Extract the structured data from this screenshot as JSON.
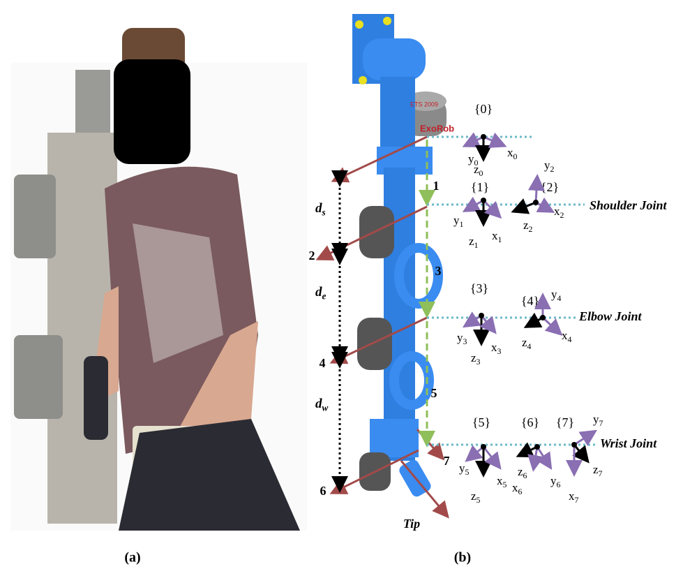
{
  "robot_labels": [
    "ExoRob",
    "ETS 2009"
  ],
  "frames": [
    {
      "label": "{0}",
      "axes": [
        {
          "letter": "y",
          "sub": "0"
        },
        {
          "letter": "z",
          "sub": "0"
        },
        {
          "letter": "x",
          "sub": "0"
        }
      ]
    },
    {
      "label": "{1}",
      "axes": [
        {
          "letter": "y",
          "sub": "1"
        },
        {
          "letter": "z",
          "sub": "1"
        },
        {
          "letter": "x",
          "sub": "1"
        }
      ]
    },
    {
      "label": "{2}",
      "axes": [
        {
          "letter": "y",
          "sub": "2"
        },
        {
          "letter": "x",
          "sub": "2"
        },
        {
          "letter": "z",
          "sub": "2"
        }
      ]
    },
    {
      "label": "{3}",
      "axes": [
        {
          "letter": "y",
          "sub": "3"
        },
        {
          "letter": "z",
          "sub": "3"
        },
        {
          "letter": "x",
          "sub": "3"
        }
      ]
    },
    {
      "label": "{4}",
      "axes": [
        {
          "letter": "y",
          "sub": "4"
        },
        {
          "letter": "x",
          "sub": "4"
        },
        {
          "letter": "z",
          "sub": "4"
        }
      ]
    },
    {
      "label": "{5}",
      "axes": [
        {
          "letter": "y",
          "sub": "5"
        },
        {
          "letter": "z",
          "sub": "5"
        },
        {
          "letter": "x",
          "sub": "5"
        }
      ]
    },
    {
      "label": "{6}",
      "axes": [
        {
          "letter": "z",
          "sub": "6"
        },
        {
          "letter": "x",
          "sub": "6"
        },
        {
          "letter": "y",
          "sub": "6"
        }
      ]
    },
    {
      "label": "{7}",
      "axes": [
        {
          "letter": "y",
          "sub": "7"
        },
        {
          "letter": "z",
          "sub": "7"
        },
        {
          "letter": "x",
          "sub": "7"
        }
      ]
    }
  ],
  "joints": [
    "Shoulder Joint",
    "Elbow  Joint",
    "Wrist Joint"
  ],
  "link_numbers": [
    "1",
    "2",
    "3",
    "4",
    "5",
    "6",
    "7"
  ],
  "distances": [
    {
      "letter": "d",
      "sub": "s"
    },
    {
      "letter": "d",
      "sub": "e"
    },
    {
      "letter": "d",
      "sub": "w"
    }
  ],
  "tip": "Tip",
  "panels": [
    "(a)",
    "(b)"
  ]
}
